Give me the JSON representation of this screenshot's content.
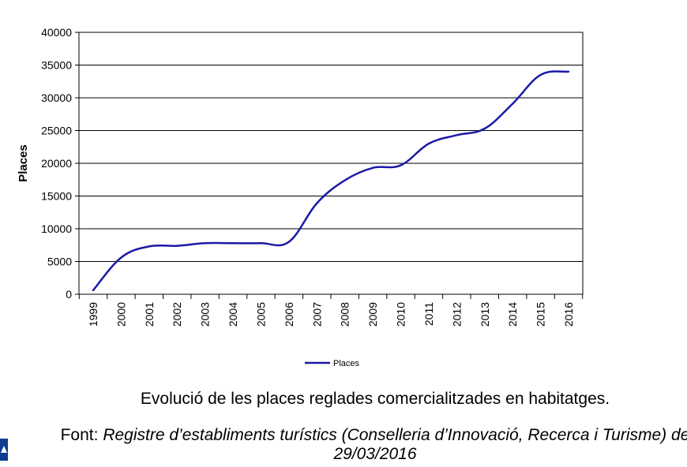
{
  "chart_data": {
    "type": "line",
    "title": "",
    "xlabel": "",
    "ylabel": "Places",
    "ylim": [
      0,
      40000
    ],
    "yticks": [
      0,
      5000,
      10000,
      15000,
      20000,
      25000,
      30000,
      35000,
      40000
    ],
    "categories": [
      "1999",
      "2000",
      "2001",
      "2002",
      "2003",
      "2004",
      "2005",
      "2006",
      "2007",
      "2008",
      "2009",
      "2010",
      "2011",
      "2012",
      "2013",
      "2014",
      "2015",
      "2016"
    ],
    "series": [
      {
        "name": "Places",
        "color": "#1a1aa6",
        "values": [
          600,
          5600,
          7300,
          7400,
          7800,
          7800,
          7800,
          8000,
          13900,
          17400,
          19300,
          19700,
          23000,
          24300,
          25300,
          29100,
          33500,
          34000
        ]
      }
    ],
    "grid": true,
    "legend_position": "bottom"
  },
  "caption": {
    "title": "Evolució de les places reglades comercialitzades en habitatges.",
    "source_prefix": "Font:",
    "source_italic": "Registre d’establiments turístics (Conselleria d’Innovació, Recerca i Turisme) de 29/03/2016"
  },
  "colors": {
    "line": "#1a1aa6",
    "axis": "#000000",
    "logo": "#0b3d91"
  }
}
